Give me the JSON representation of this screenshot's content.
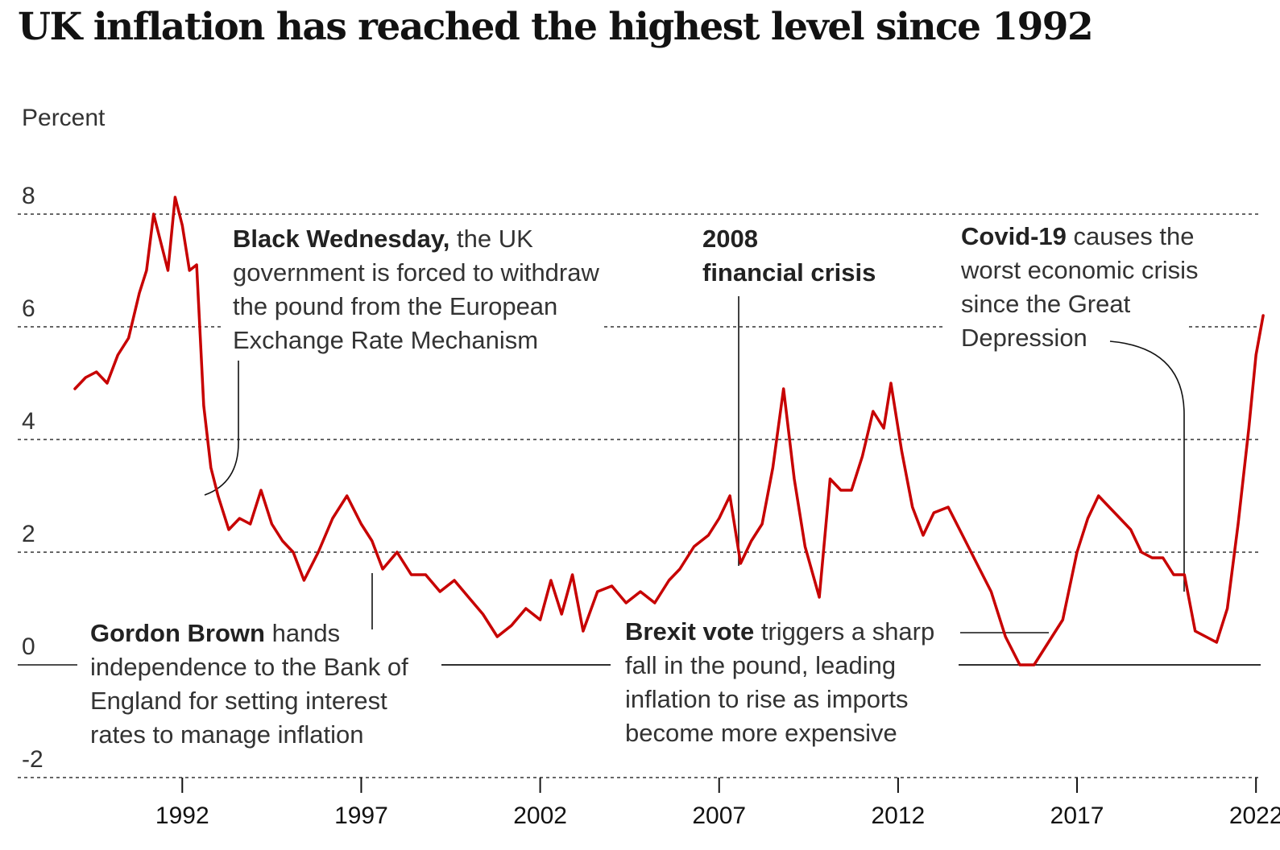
{
  "chart_data": {
    "type": "line",
    "title": "UK inflation has reached the highest level since 1992",
    "ylabel": "Percent",
    "xlabel": "",
    "ylim": [
      -2,
      8
    ],
    "xlim": [
      1989.0,
      2022.4
    ],
    "yticks": [
      -2,
      0,
      2,
      4,
      6,
      8
    ],
    "xticks": [
      1992,
      1997,
      2002,
      2007,
      2012,
      2017,
      2022
    ],
    "grid": true,
    "series": [
      {
        "name": "",
        "color": "#c70000",
        "points": [
          [
            1989.0,
            4.9
          ],
          [
            1989.3,
            5.1
          ],
          [
            1989.6,
            5.2
          ],
          [
            1989.9,
            5.0
          ],
          [
            1990.2,
            5.5
          ],
          [
            1990.5,
            5.8
          ],
          [
            1990.8,
            6.6
          ],
          [
            1991.0,
            7.0
          ],
          [
            1991.2,
            8.0
          ],
          [
            1991.4,
            7.5
          ],
          [
            1991.6,
            7.0
          ],
          [
            1991.8,
            8.3
          ],
          [
            1992.0,
            7.8
          ],
          [
            1992.2,
            7.0
          ],
          [
            1992.4,
            7.1
          ],
          [
            1992.6,
            4.6
          ],
          [
            1992.8,
            3.5
          ],
          [
            1993.0,
            3.0
          ],
          [
            1993.3,
            2.4
          ],
          [
            1993.6,
            2.6
          ],
          [
            1993.9,
            2.5
          ],
          [
            1994.2,
            3.1
          ],
          [
            1994.5,
            2.5
          ],
          [
            1994.8,
            2.2
          ],
          [
            1995.1,
            2.0
          ],
          [
            1995.4,
            1.5
          ],
          [
            1995.8,
            2.0
          ],
          [
            1996.2,
            2.6
          ],
          [
            1996.6,
            3.0
          ],
          [
            1997.0,
            2.5
          ],
          [
            1997.3,
            2.2
          ],
          [
            1997.6,
            1.7
          ],
          [
            1998.0,
            2.0
          ],
          [
            1998.4,
            1.6
          ],
          [
            1998.8,
            1.6
          ],
          [
            1999.2,
            1.3
          ],
          [
            1999.6,
            1.5
          ],
          [
            2000.0,
            1.2
          ],
          [
            2000.4,
            0.9
          ],
          [
            2000.8,
            0.5
          ],
          [
            2001.2,
            0.7
          ],
          [
            2001.6,
            1.0
          ],
          [
            2002.0,
            0.8
          ],
          [
            2002.3,
            1.5
          ],
          [
            2002.6,
            0.9
          ],
          [
            2002.9,
            1.6
          ],
          [
            2003.2,
            0.6
          ],
          [
            2003.6,
            1.3
          ],
          [
            2004.0,
            1.4
          ],
          [
            2004.4,
            1.1
          ],
          [
            2004.8,
            1.3
          ],
          [
            2005.2,
            1.1
          ],
          [
            2005.6,
            1.5
          ],
          [
            2005.9,
            1.7
          ],
          [
            2006.3,
            2.1
          ],
          [
            2006.7,
            2.3
          ],
          [
            2007.0,
            2.6
          ],
          [
            2007.3,
            3.0
          ],
          [
            2007.6,
            1.8
          ],
          [
            2007.9,
            2.2
          ],
          [
            2008.2,
            2.5
          ],
          [
            2008.5,
            3.5
          ],
          [
            2008.8,
            4.9
          ],
          [
            2009.1,
            3.3
          ],
          [
            2009.4,
            2.1
          ],
          [
            2009.8,
            1.2
          ],
          [
            2010.1,
            3.3
          ],
          [
            2010.4,
            3.1
          ],
          [
            2010.7,
            3.1
          ],
          [
            2011.0,
            3.7
          ],
          [
            2011.3,
            4.5
          ],
          [
            2011.6,
            4.2
          ],
          [
            2011.8,
            5.0
          ],
          [
            2012.1,
            3.8
          ],
          [
            2012.4,
            2.8
          ],
          [
            2012.7,
            2.3
          ],
          [
            2013.0,
            2.7
          ],
          [
            2013.4,
            2.8
          ],
          [
            2013.8,
            2.3
          ],
          [
            2014.2,
            1.8
          ],
          [
            2014.6,
            1.3
          ],
          [
            2015.0,
            0.5
          ],
          [
            2015.4,
            0.0
          ],
          [
            2015.8,
            0.0
          ],
          [
            2016.2,
            0.4
          ],
          [
            2016.6,
            0.8
          ],
          [
            2017.0,
            2.0
          ],
          [
            2017.3,
            2.6
          ],
          [
            2017.6,
            3.0
          ],
          [
            2017.9,
            2.8
          ],
          [
            2018.2,
            2.6
          ],
          [
            2018.5,
            2.4
          ],
          [
            2018.8,
            2.0
          ],
          [
            2019.1,
            1.9
          ],
          [
            2019.4,
            1.9
          ],
          [
            2019.7,
            1.6
          ],
          [
            2020.0,
            1.6
          ],
          [
            2020.3,
            0.6
          ],
          [
            2020.6,
            0.5
          ],
          [
            2020.9,
            0.4
          ],
          [
            2021.2,
            1.0
          ],
          [
            2021.5,
            2.5
          ],
          [
            2021.8,
            4.2
          ],
          [
            2022.0,
            5.5
          ],
          [
            2022.2,
            6.2
          ]
        ]
      }
    ],
    "annotations": [
      {
        "bold": "Black Wednesday,",
        "lines": [
          "the UK",
          "government is forced to withdraw",
          "the pound from the European",
          "Exchange Rate Mechanism"
        ]
      },
      {
        "bold": "2008",
        "lines": [
          "financial crisis"
        ]
      },
      {
        "bold": "Covid-19",
        "lines": [
          "causes the",
          "worst economic crisis",
          "since the Great",
          "Depression"
        ]
      },
      {
        "bold": "Gordon Brown",
        "lines": [
          "hands",
          "independence to the Bank of",
          "England for setting interest",
          "rates to manage inflation"
        ]
      },
      {
        "bold": "Brexit vote",
        "lines": [
          "triggers a sharp",
          "fall in the pound, leading",
          "inflation to rise as imports",
          "become more expensive"
        ]
      }
    ]
  }
}
